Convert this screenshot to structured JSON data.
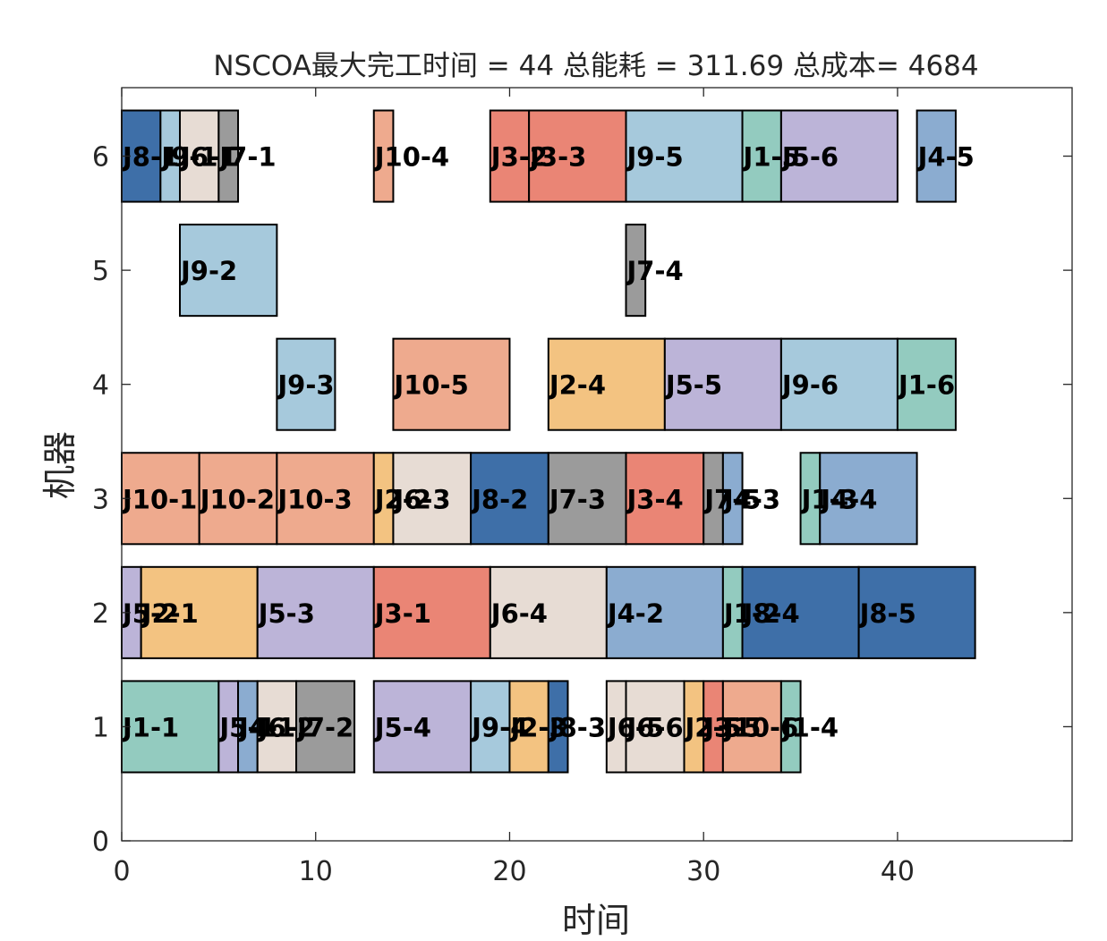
{
  "chart_data": {
    "type": "gantt",
    "title": "NSCOA最大完工时间 = 44 总能耗 = 311.69 总成本= 4684",
    "xlabel": "时间",
    "ylabel": "机器",
    "xlim": [
      0,
      49
    ],
    "ylim": [
      0,
      6.6
    ],
    "xticks": [
      "0",
      "10",
      "20",
      "30",
      "40"
    ],
    "yticks": [
      "0",
      "1",
      "2",
      "3",
      "4",
      "5",
      "6"
    ],
    "grid": false,
    "job_colors": {
      "J1": "#93cbbf",
      "J2": "#f3c381",
      "J3": "#ea8575",
      "J4": "#8bacd0",
      "J5": "#bcb4d8",
      "J6": "#e7dcd4",
      "J7": "#9b9b9b",
      "J8": "#3e6fa8",
      "J9": "#a6c9dc",
      "J10": "#eeaa8e"
    },
    "tasks": [
      {
        "machine": 6,
        "start": 0,
        "end": 2,
        "job": "J8",
        "label": "J8-1"
      },
      {
        "machine": 6,
        "start": 2,
        "end": 3,
        "job": "J9",
        "label": "J9-1"
      },
      {
        "machine": 6,
        "start": 3,
        "end": 5,
        "job": "J6",
        "label": "J6-1"
      },
      {
        "machine": 6,
        "start": 5,
        "end": 6,
        "job": "J7",
        "label": "J7-1"
      },
      {
        "machine": 6,
        "start": 13,
        "end": 14,
        "job": "J10",
        "label": "J10-4"
      },
      {
        "machine": 6,
        "start": 19,
        "end": 21,
        "job": "J3",
        "label": "J3-2"
      },
      {
        "machine": 6,
        "start": 21,
        "end": 26,
        "job": "J3",
        "label": "J3-3"
      },
      {
        "machine": 6,
        "start": 26,
        "end": 32,
        "job": "J9",
        "label": "J9-5"
      },
      {
        "machine": 6,
        "start": 32,
        "end": 34,
        "job": "J1",
        "label": "J1-5"
      },
      {
        "machine": 6,
        "start": 34,
        "end": 40,
        "job": "J5",
        "label": "J5-6"
      },
      {
        "machine": 6,
        "start": 41,
        "end": 43,
        "job": "J4",
        "label": "J4-5"
      },
      {
        "machine": 5,
        "start": 3,
        "end": 8,
        "job": "J9",
        "label": "J9-2"
      },
      {
        "machine": 5,
        "start": 26,
        "end": 27,
        "job": "J7",
        "label": "J7-4"
      },
      {
        "machine": 4,
        "start": 8,
        "end": 11,
        "job": "J9",
        "label": "J9-3"
      },
      {
        "machine": 4,
        "start": 14,
        "end": 20,
        "job": "J10",
        "label": "J10-5"
      },
      {
        "machine": 4,
        "start": 22,
        "end": 28,
        "job": "J2",
        "label": "J2-4"
      },
      {
        "machine": 4,
        "start": 28,
        "end": 34,
        "job": "J5",
        "label": "J5-5"
      },
      {
        "machine": 4,
        "start": 34,
        "end": 40,
        "job": "J9",
        "label": "J9-6"
      },
      {
        "machine": 4,
        "start": 40,
        "end": 43,
        "job": "J1",
        "label": "J1-6"
      },
      {
        "machine": 3,
        "start": 0,
        "end": 4,
        "job": "J10",
        "label": "J10-1"
      },
      {
        "machine": 3,
        "start": 4,
        "end": 8,
        "job": "J10",
        "label": "J10-2"
      },
      {
        "machine": 3,
        "start": 8,
        "end": 13,
        "job": "J10",
        "label": "J10-3"
      },
      {
        "machine": 3,
        "start": 13,
        "end": 14,
        "job": "J2",
        "label": "J2-2"
      },
      {
        "machine": 3,
        "start": 14,
        "end": 18,
        "job": "J6",
        "label": "J6-3"
      },
      {
        "machine": 3,
        "start": 18,
        "end": 22,
        "job": "J8",
        "label": "J8-2"
      },
      {
        "machine": 3,
        "start": 22,
        "end": 26,
        "job": "J7",
        "label": "J7-3"
      },
      {
        "machine": 3,
        "start": 26,
        "end": 30,
        "job": "J3",
        "label": "J3-4"
      },
      {
        "machine": 3,
        "start": 30,
        "end": 31,
        "job": "J7",
        "label": "J7-5"
      },
      {
        "machine": 3,
        "start": 31,
        "end": 32,
        "job": "J4",
        "label": "J4-3"
      },
      {
        "machine": 3,
        "start": 35,
        "end": 36,
        "job": "J1",
        "label": "J1-3"
      },
      {
        "machine": 3,
        "start": 36,
        "end": 41,
        "job": "J4",
        "label": "J4-4"
      },
      {
        "machine": 2,
        "start": 0,
        "end": 1,
        "job": "J5",
        "label": "J5-2"
      },
      {
        "machine": 2,
        "start": 1,
        "end": 7,
        "job": "J2",
        "label": "J2-1"
      },
      {
        "machine": 2,
        "start": 7,
        "end": 13,
        "job": "J5",
        "label": "J5-3"
      },
      {
        "machine": 2,
        "start": 13,
        "end": 19,
        "job": "J3",
        "label": "J3-1"
      },
      {
        "machine": 2,
        "start": 19,
        "end": 25,
        "job": "J6",
        "label": "J6-4"
      },
      {
        "machine": 2,
        "start": 25,
        "end": 31,
        "job": "J4",
        "label": "J4-2"
      },
      {
        "machine": 2,
        "start": 31,
        "end": 32,
        "job": "J1",
        "label": "J1-2"
      },
      {
        "machine": 2,
        "start": 32,
        "end": 38,
        "job": "J8",
        "label": "J8-4"
      },
      {
        "machine": 2,
        "start": 38,
        "end": 44,
        "job": "J8",
        "label": "J8-5"
      },
      {
        "machine": 1,
        "start": 0,
        "end": 5,
        "job": "J1",
        "label": "J1-1"
      },
      {
        "machine": 1,
        "start": 5,
        "end": 6,
        "job": "J5",
        "label": "J5-1"
      },
      {
        "machine": 1,
        "start": 6,
        "end": 7,
        "job": "J4",
        "label": "J4-1"
      },
      {
        "machine": 1,
        "start": 7,
        "end": 9,
        "job": "J6",
        "label": "J6-2"
      },
      {
        "machine": 1,
        "start": 9,
        "end": 12,
        "job": "J7",
        "label": "J7-2"
      },
      {
        "machine": 1,
        "start": 13,
        "end": 18,
        "job": "J5",
        "label": "J5-4"
      },
      {
        "machine": 1,
        "start": 18,
        "end": 20,
        "job": "J9",
        "label": "J9-4"
      },
      {
        "machine": 1,
        "start": 20,
        "end": 22,
        "job": "J2",
        "label": "J2-3"
      },
      {
        "machine": 1,
        "start": 22,
        "end": 23,
        "job": "J8",
        "label": "J8-3"
      },
      {
        "machine": 1,
        "start": 25,
        "end": 26,
        "job": "J6",
        "label": "J6-5"
      },
      {
        "machine": 1,
        "start": 26,
        "end": 29,
        "job": "J6",
        "label": "J6-6"
      },
      {
        "machine": 1,
        "start": 29,
        "end": 30,
        "job": "J2",
        "label": "J2-5"
      },
      {
        "machine": 1,
        "start": 30,
        "end": 31,
        "job": "J3",
        "label": "J3-5"
      },
      {
        "machine": 1,
        "start": 31,
        "end": 34,
        "job": "J10",
        "label": "J10-6"
      },
      {
        "machine": 1,
        "start": 34,
        "end": 35,
        "job": "J1",
        "label": "J1-4"
      }
    ]
  }
}
